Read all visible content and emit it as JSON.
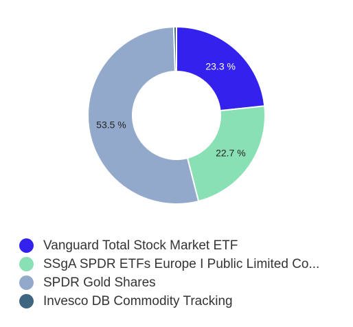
{
  "chart_data": {
    "type": "pie",
    "variant": "donut",
    "title": "",
    "legend_position": "bottom",
    "slices": [
      {
        "name": "Vanguard Total Stock Market ETF",
        "value": 23.3,
        "label": "23.3 %",
        "color": "#3322ee",
        "label_color": "#ffffff"
      },
      {
        "name": "SSgA SPDR ETFs Europe I Public Limited Co...",
        "value": 22.7,
        "label": "22.7 %",
        "color": "#88e0b4",
        "label_color": "#222222"
      },
      {
        "name": "SPDR Gold Shares",
        "value": 53.5,
        "label": "53.5 %",
        "color": "#93a9cb",
        "label_color": "#222222"
      },
      {
        "name": "Invesco DB Commodity Tracking",
        "value": 0.5,
        "label": "",
        "color": "#3f6680",
        "label_color": "#ffffff"
      }
    ]
  }
}
